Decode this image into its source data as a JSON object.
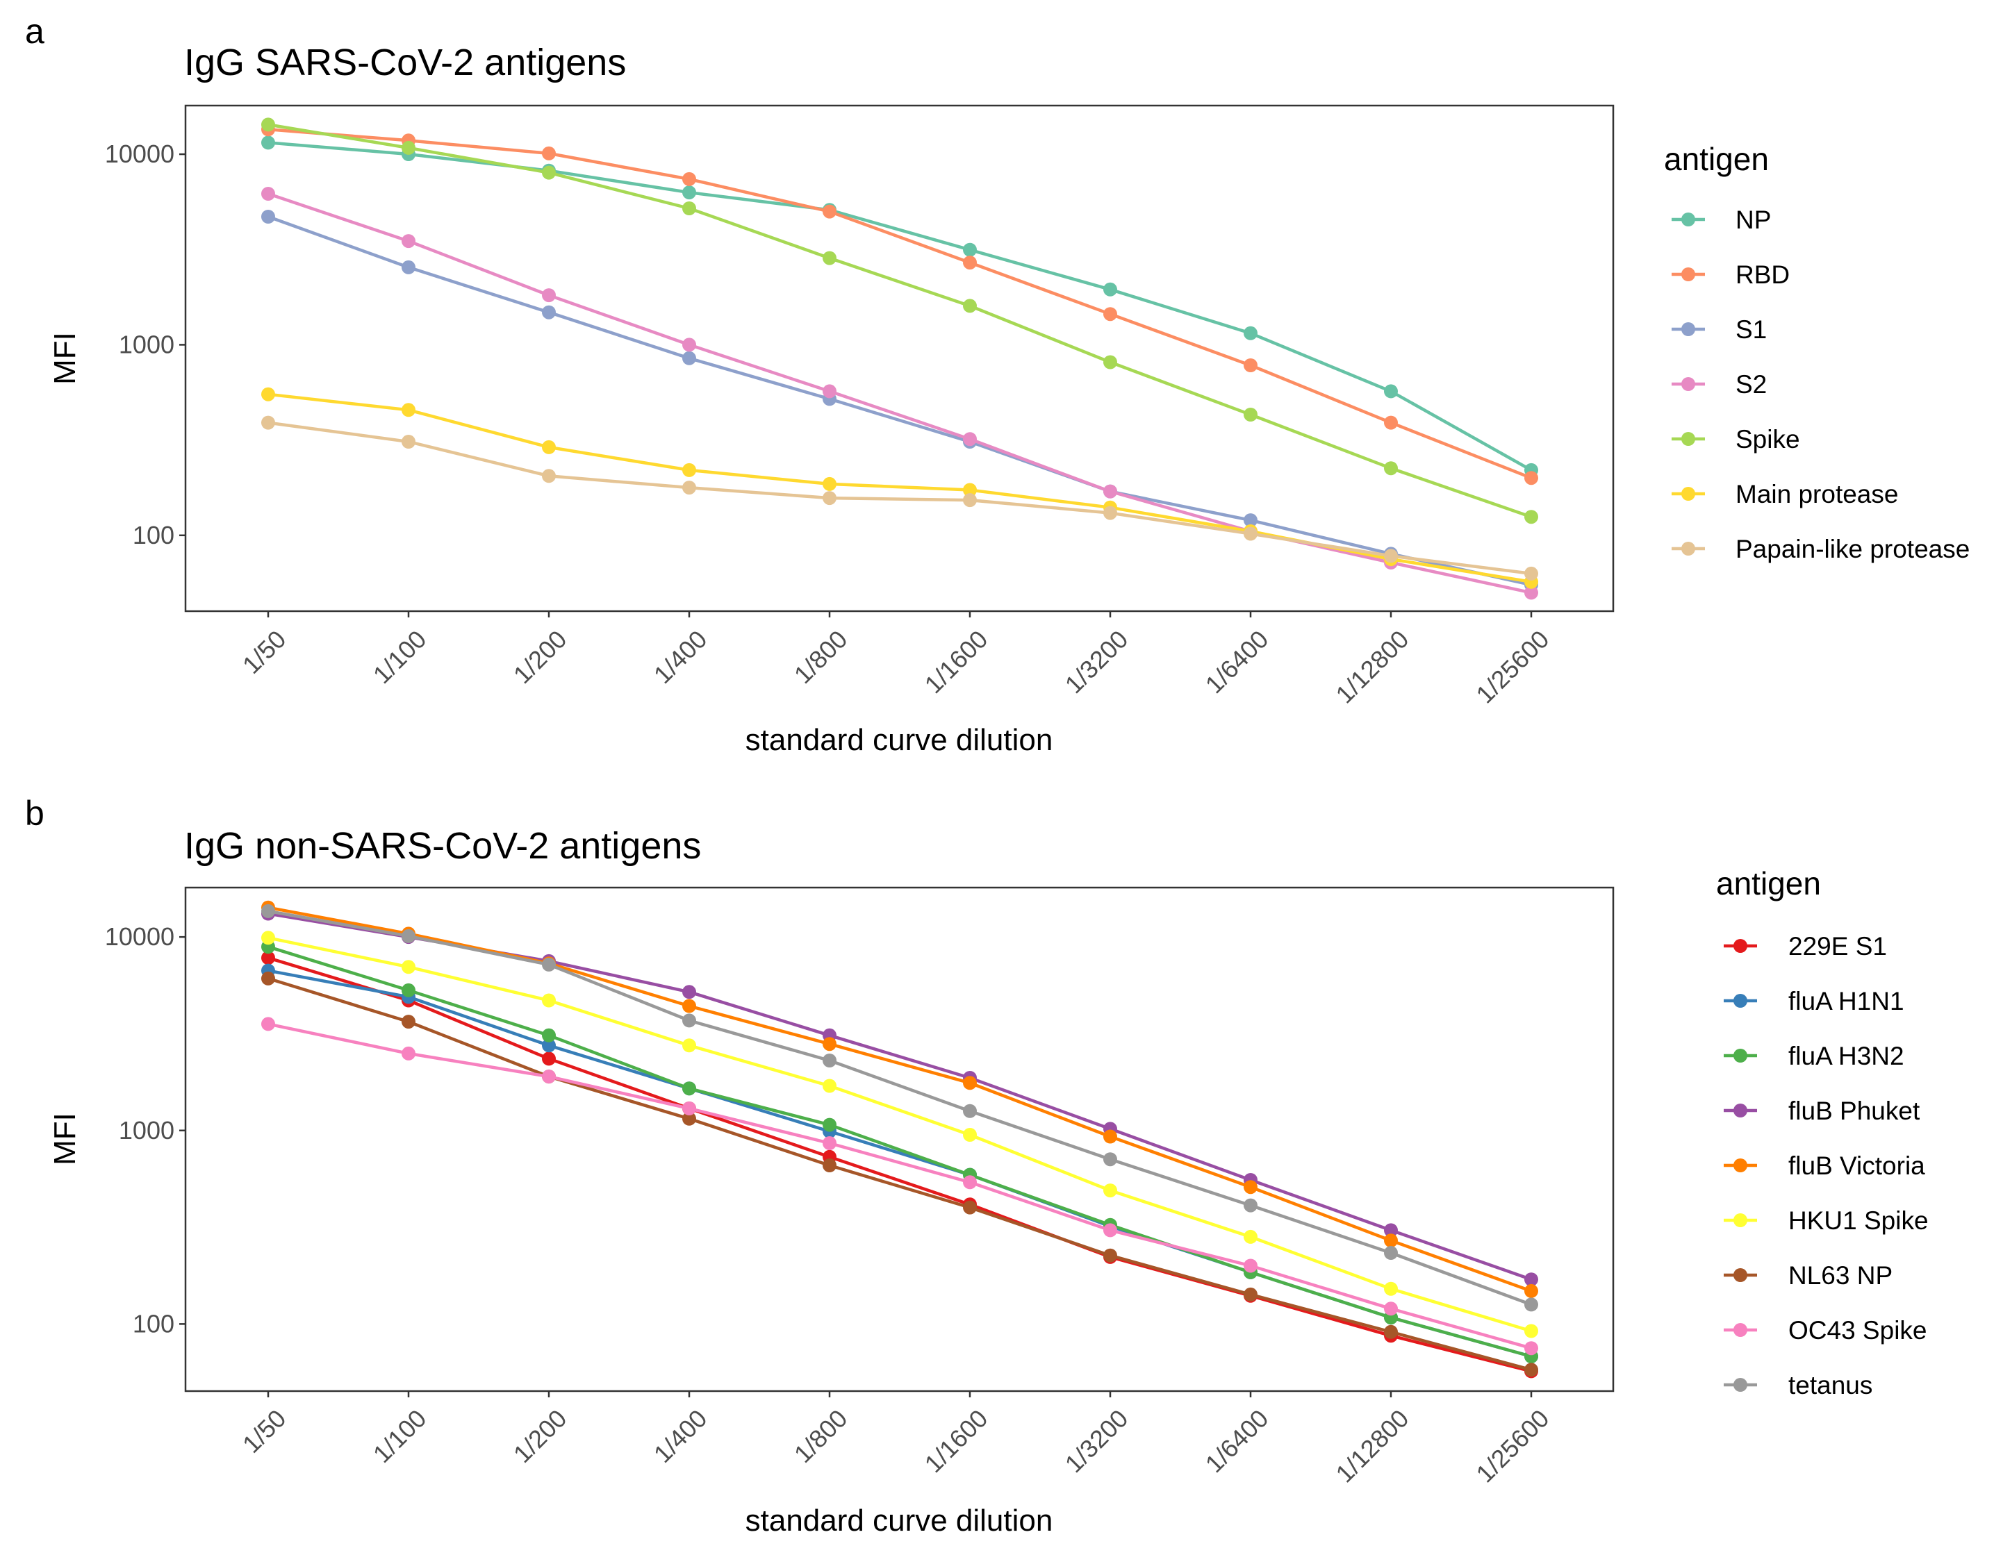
{
  "chart_data": [
    {
      "panel_letter": "a",
      "type": "line",
      "title": "IgG SARS-CoV-2 antigens",
      "xlabel": "standard curve dilution",
      "ylabel": "MFI",
      "yscale": "log10",
      "ylim": [
        40,
        18000
      ],
      "yticks": [
        100,
        1000,
        10000
      ],
      "categories": [
        "1/50",
        "1/100",
        "1/200",
        "1/400",
        "1/800",
        "1/1600",
        "1/3200",
        "1/6400",
        "1/12800",
        "1/25600"
      ],
      "legend_title": "antigen",
      "legend_position": "right",
      "series": [
        {
          "name": "NP",
          "color": "#66c2a5",
          "values": [
            11500,
            10000,
            8200,
            6300,
            5100,
            3150,
            1950,
            1150,
            570,
            220
          ]
        },
        {
          "name": "RBD",
          "color": "#fc8d62",
          "values": [
            13500,
            11800,
            10100,
            7400,
            5000,
            2700,
            1450,
            780,
            390,
            200
          ]
        },
        {
          "name": "S1",
          "color": "#8da0cb",
          "values": [
            4700,
            2550,
            1480,
            850,
            520,
            310,
            170,
            120,
            80,
            55
          ]
        },
        {
          "name": "S2",
          "color": "#e78ac3",
          "values": [
            6200,
            3500,
            1820,
            1000,
            570,
            320,
            170,
            105,
            72,
            50
          ]
        },
        {
          "name": "Spike",
          "color": "#a6d854",
          "values": [
            14300,
            10800,
            8000,
            5200,
            2850,
            1600,
            810,
            430,
            225,
            125
          ]
        },
        {
          "name": "Main protease",
          "color": "#ffd92f",
          "values": [
            550,
            455,
            290,
            220,
            186,
            173,
            140,
            105,
            75,
            57
          ]
        },
        {
          "name": "Papain-like protease",
          "color": "#e5c494",
          "values": [
            390,
            310,
            205,
            178,
            157,
            153,
            131,
            102,
            78,
            63
          ]
        }
      ]
    },
    {
      "panel_letter": "b",
      "type": "line",
      "title": "IgG non-SARS-CoV-2 antigens",
      "xlabel": "standard curve dilution",
      "ylabel": "MFI",
      "yscale": "log10",
      "ylim": [
        45,
        18000
      ],
      "yticks": [
        100,
        1000,
        10000
      ],
      "categories": [
        "1/50",
        "1/100",
        "1/200",
        "1/400",
        "1/800",
        "1/1600",
        "1/3200",
        "1/6400",
        "1/12800",
        "1/25600"
      ],
      "legend_title": "antigen",
      "legend_position": "right",
      "series": [
        {
          "name": "229E S1",
          "color": "#e41a1c",
          "values": [
            7800,
            4700,
            2350,
            1300,
            730,
            415,
            222,
            140,
            87,
            57
          ]
        },
        {
          "name": "fluA H1N1",
          "color": "#377eb8",
          "values": [
            6700,
            4900,
            2750,
            1650,
            990,
            590,
            320,
            185,
            108,
            68
          ]
        },
        {
          "name": "fluA H3N2",
          "color": "#4daf4a",
          "values": [
            8900,
            5300,
            3100,
            1650,
            1070,
            590,
            325,
            185,
            108,
            68
          ]
        },
        {
          "name": "fluB Phuket",
          "color": "#984ea3",
          "values": [
            13200,
            10000,
            7500,
            5200,
            3100,
            1870,
            1020,
            555,
            305,
            170
          ]
        },
        {
          "name": "fluB Victoria",
          "color": "#ff7f00",
          "values": [
            14200,
            10400,
            7300,
            4400,
            2800,
            1760,
            930,
            510,
            270,
            148
          ]
        },
        {
          "name": "HKU1 Spike",
          "color": "#ffff33",
          "values": [
            9900,
            7000,
            4700,
            2750,
            1700,
            950,
            490,
            282,
            152,
            92
          ]
        },
        {
          "name": "NL63 NP",
          "color": "#a65628",
          "values": [
            6100,
            3650,
            1900,
            1150,
            660,
            400,
            226,
            142,
            91,
            58
          ]
        },
        {
          "name": "OC43 Spike",
          "color": "#f781bf",
          "values": [
            3550,
            2500,
            1900,
            1300,
            860,
            540,
            305,
            200,
            120,
            75
          ]
        },
        {
          "name": "tetanus",
          "color": "#999999",
          "values": [
            13600,
            10100,
            7200,
            3700,
            2300,
            1260,
            710,
            410,
            233,
            126
          ]
        }
      ]
    }
  ]
}
